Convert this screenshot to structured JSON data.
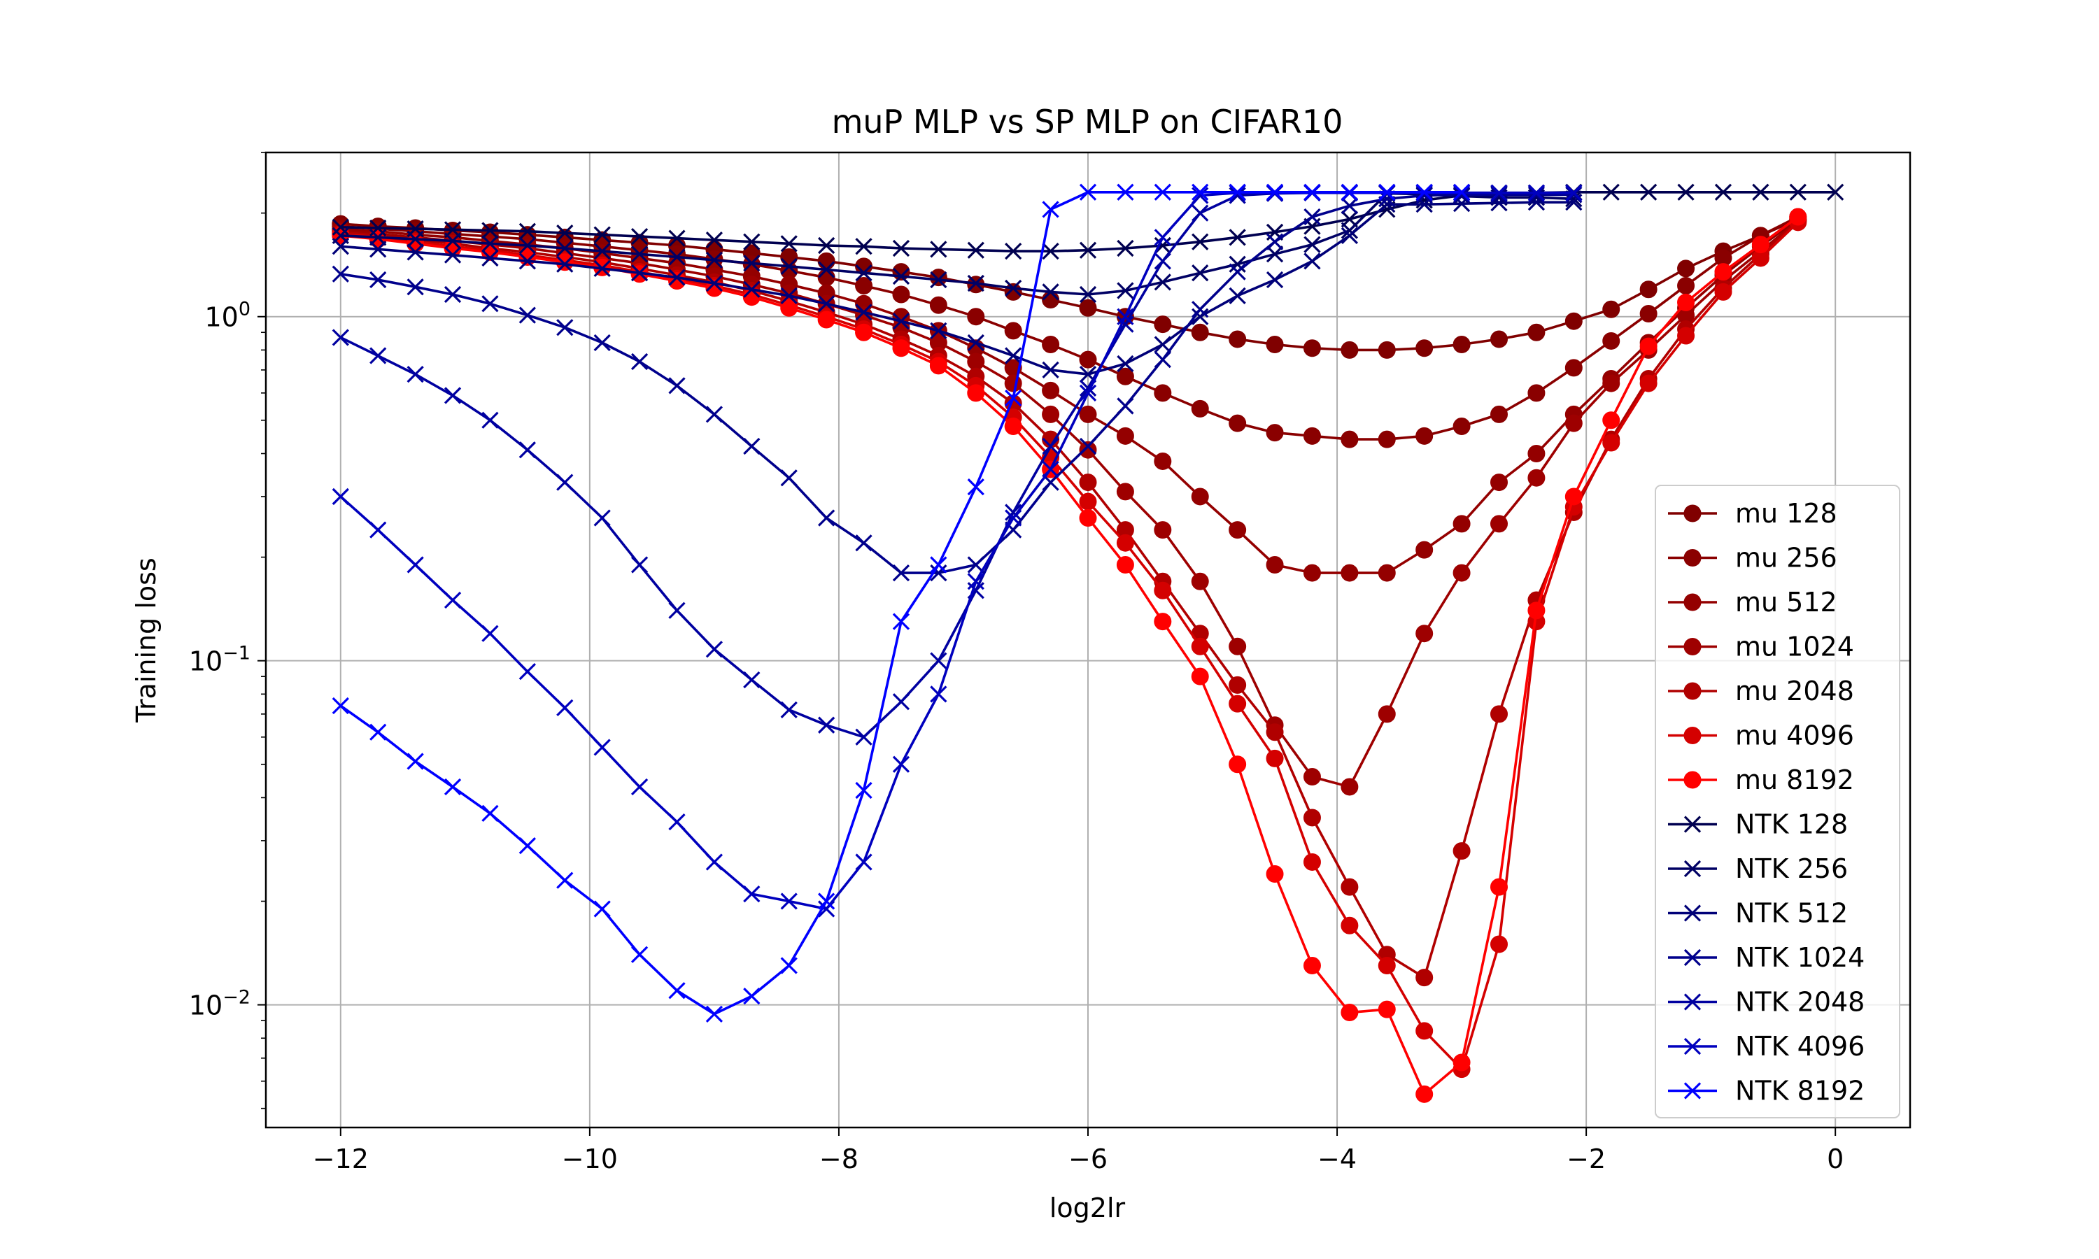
{
  "chart_data": {
    "type": "line",
    "title": "muP MLP vs SP MLP on CIFAR10",
    "xlabel": "log2lr",
    "ylabel": "Training loss",
    "xlim": [
      -12.6,
      0.6
    ],
    "ylim": [
      0.0044,
      3.0
    ],
    "yscale": "log",
    "grid": true,
    "legend_position": "lower-right",
    "x_ticks": [
      {
        "value": -12,
        "label": "−12"
      },
      {
        "value": -10,
        "label": "−10"
      },
      {
        "value": -8,
        "label": "−8"
      },
      {
        "value": -6,
        "label": "−6"
      },
      {
        "value": -4,
        "label": "−4"
      },
      {
        "value": -2,
        "label": "−2"
      },
      {
        "value": 0,
        "label": "0"
      }
    ],
    "y_ticks": [
      {
        "value": 0.01,
        "base": "10",
        "exp": "−2"
      },
      {
        "value": 0.1,
        "base": "10",
        "exp": "−1"
      },
      {
        "value": 1,
        "base": "10",
        "exp": "0"
      }
    ],
    "series": [
      {
        "name": "mu 128",
        "color": "#800000",
        "marker": "circle",
        "x": [
          -12,
          -11.7,
          -11.4,
          -11.1,
          -10.8,
          -10.5,
          -10.2,
          -9.9,
          -9.6,
          -9.3,
          -9.0,
          -8.7,
          -8.4,
          -8.1,
          -7.8,
          -7.5,
          -7.2,
          -6.9,
          -6.6,
          -6.3,
          -6.0,
          -5.7,
          -5.4,
          -5.1,
          -4.8,
          -4.5,
          -4.2,
          -3.9,
          -3.6,
          -3.3,
          -3.0,
          -2.7,
          -2.4,
          -2.1,
          -1.8,
          -1.5,
          -1.2,
          -0.9,
          -0.6,
          -0.3
        ],
        "y": [
          1.86,
          1.83,
          1.81,
          1.78,
          1.76,
          1.73,
          1.7,
          1.67,
          1.64,
          1.61,
          1.57,
          1.53,
          1.49,
          1.45,
          1.4,
          1.35,
          1.3,
          1.24,
          1.18,
          1.12,
          1.06,
          1.0,
          0.95,
          0.9,
          0.86,
          0.83,
          0.81,
          0.8,
          0.8,
          0.81,
          0.83,
          0.86,
          0.9,
          0.97,
          1.05,
          1.2,
          1.38,
          1.55,
          1.72,
          1.92
        ]
      },
      {
        "name": "mu 256",
        "color": "#8a0000",
        "marker": "circle",
        "x": [
          -12,
          -11.7,
          -11.4,
          -11.1,
          -10.8,
          -10.5,
          -10.2,
          -9.9,
          -9.6,
          -9.3,
          -9.0,
          -8.7,
          -8.4,
          -8.1,
          -7.8,
          -7.5,
          -7.2,
          -6.9,
          -6.6,
          -6.3,
          -6.0,
          -5.7,
          -5.4,
          -5.1,
          -4.8,
          -4.5,
          -4.2,
          -3.9,
          -3.6,
          -3.3,
          -3.0,
          -2.7,
          -2.4,
          -2.1,
          -1.8,
          -1.5,
          -1.2,
          -0.9,
          -0.6,
          -0.3
        ],
        "y": [
          1.83,
          1.8,
          1.77,
          1.74,
          1.71,
          1.68,
          1.64,
          1.6,
          1.56,
          1.52,
          1.47,
          1.42,
          1.36,
          1.3,
          1.23,
          1.16,
          1.08,
          1.0,
          0.91,
          0.83,
          0.75,
          0.67,
          0.6,
          0.54,
          0.49,
          0.46,
          0.45,
          0.44,
          0.44,
          0.45,
          0.48,
          0.52,
          0.6,
          0.71,
          0.85,
          1.02,
          1.23,
          1.48,
          1.72,
          1.95
        ]
      },
      {
        "name": "mu 512",
        "color": "#940000",
        "marker": "circle",
        "x": [
          -12,
          -11.7,
          -11.4,
          -11.1,
          -10.8,
          -10.5,
          -10.2,
          -9.9,
          -9.6,
          -9.3,
          -9.0,
          -8.7,
          -8.4,
          -8.1,
          -7.8,
          -7.5,
          -7.2,
          -6.9,
          -6.6,
          -6.3,
          -6.0,
          -5.7,
          -5.4,
          -5.1,
          -4.8,
          -4.5,
          -4.2,
          -3.9,
          -3.6,
          -3.3,
          -3.0,
          -2.7,
          -2.4,
          -2.1,
          -1.8,
          -1.5,
          -1.2,
          -0.9,
          -0.6,
          -0.3
        ],
        "y": [
          1.8,
          1.77,
          1.73,
          1.7,
          1.66,
          1.62,
          1.58,
          1.53,
          1.48,
          1.43,
          1.37,
          1.31,
          1.24,
          1.17,
          1.09,
          1.0,
          0.91,
          0.81,
          0.71,
          0.61,
          0.52,
          0.45,
          0.38,
          0.3,
          0.24,
          0.19,
          0.18,
          0.18,
          0.18,
          0.21,
          0.25,
          0.33,
          0.4,
          0.52,
          0.66,
          0.84,
          1.06,
          1.32,
          1.6,
          1.92
        ]
      },
      {
        "name": "mu 1024",
        "color": "#9e0000",
        "marker": "circle",
        "x": [
          -12,
          -11.7,
          -11.4,
          -11.1,
          -10.8,
          -10.5,
          -10.2,
          -9.9,
          -9.6,
          -9.3,
          -9.0,
          -8.7,
          -8.4,
          -8.1,
          -7.8,
          -7.5,
          -7.2,
          -6.9,
          -6.6,
          -6.3,
          -6.0,
          -5.7,
          -5.4,
          -5.1,
          -4.8,
          -4.5,
          -4.2,
          -3.9,
          -3.6,
          -3.3,
          -3.0,
          -2.7,
          -2.4,
          -2.1,
          -1.8,
          -1.5,
          -1.2,
          -0.9,
          -0.6,
          -0.3
        ],
        "y": [
          1.78,
          1.74,
          1.7,
          1.66,
          1.62,
          1.58,
          1.53,
          1.48,
          1.43,
          1.37,
          1.31,
          1.24,
          1.17,
          1.09,
          1.01,
          0.93,
          0.84,
          0.74,
          0.64,
          0.52,
          0.41,
          0.31,
          0.24,
          0.17,
          0.11,
          0.065,
          0.046,
          0.043,
          0.07,
          0.12,
          0.18,
          0.25,
          0.34,
          0.49,
          0.64,
          0.8,
          1.01,
          1.27,
          1.55,
          1.9
        ]
      },
      {
        "name": "mu 2048",
        "color": "#b00000",
        "marker": "circle",
        "x": [
          -12,
          -11.7,
          -11.4,
          -11.1,
          -10.8,
          -10.5,
          -10.2,
          -9.9,
          -9.6,
          -9.3,
          -9.0,
          -8.7,
          -8.4,
          -8.1,
          -7.8,
          -7.5,
          -7.2,
          -6.9,
          -6.6,
          -6.3,
          -6.0,
          -5.7,
          -5.4,
          -5.1,
          -4.8,
          -4.5,
          -4.2,
          -3.9,
          -3.6,
          -3.3,
          -3.0,
          -2.7,
          -2.4,
          -2.1,
          -1.8,
          -1.5,
          -1.2,
          -0.9,
          -0.6,
          -0.3
        ],
        "y": [
          1.76,
          1.72,
          1.67,
          1.63,
          1.58,
          1.54,
          1.49,
          1.44,
          1.38,
          1.32,
          1.26,
          1.19,
          1.11,
          1.03,
          0.95,
          0.86,
          0.77,
          0.67,
          0.56,
          0.44,
          0.33,
          0.24,
          0.17,
          0.12,
          0.085,
          0.062,
          0.035,
          0.022,
          0.014,
          0.012,
          0.028,
          0.07,
          0.15,
          0.27,
          0.44,
          0.66,
          0.92,
          1.21,
          1.52,
          1.9
        ]
      },
      {
        "name": "mu 4096",
        "color": "#d40000",
        "marker": "circle",
        "x": [
          -12,
          -11.7,
          -11.4,
          -11.1,
          -10.8,
          -10.5,
          -10.2,
          -9.9,
          -9.6,
          -9.3,
          -9.0,
          -8.7,
          -8.4,
          -8.1,
          -7.8,
          -7.5,
          -7.2,
          -6.9,
          -6.6,
          -6.3,
          -6.0,
          -5.7,
          -5.4,
          -5.1,
          -4.8,
          -4.5,
          -4.2,
          -3.9,
          -3.6,
          -3.3,
          -3.0,
          -2.7,
          -2.4,
          -2.1,
          -1.8,
          -1.5,
          -1.2,
          -0.9,
          -0.6,
          -0.3
        ],
        "y": [
          1.74,
          1.7,
          1.65,
          1.6,
          1.56,
          1.51,
          1.46,
          1.41,
          1.35,
          1.29,
          1.23,
          1.16,
          1.08,
          1.0,
          0.92,
          0.83,
          0.74,
          0.63,
          0.51,
          0.39,
          0.29,
          0.22,
          0.16,
          0.11,
          0.075,
          0.052,
          0.026,
          0.017,
          0.013,
          0.0084,
          0.0065,
          0.015,
          0.13,
          0.28,
          0.43,
          0.64,
          0.88,
          1.18,
          1.48,
          1.88
        ]
      },
      {
        "name": "mu 8192",
        "color": "#ff0000",
        "marker": "circle",
        "x": [
          -12,
          -11.7,
          -11.4,
          -11.1,
          -10.8,
          -10.5,
          -10.2,
          -9.9,
          -9.6,
          -9.3,
          -9.0,
          -8.7,
          -8.4,
          -8.1,
          -7.8,
          -7.5,
          -7.2,
          -6.9,
          -6.6,
          -6.3,
          -6.0,
          -5.7,
          -5.4,
          -5.1,
          -4.8,
          -4.5,
          -4.2,
          -3.9,
          -3.6,
          -3.3,
          -3.0,
          -2.7,
          -2.4,
          -2.1,
          -1.8,
          -1.5,
          -1.2,
          -0.9,
          -0.6,
          -0.3
        ],
        "y": [
          1.72,
          1.68,
          1.63,
          1.58,
          1.54,
          1.49,
          1.44,
          1.39,
          1.33,
          1.27,
          1.21,
          1.14,
          1.06,
          0.98,
          0.9,
          0.81,
          0.72,
          0.6,
          0.48,
          0.36,
          0.26,
          0.19,
          0.13,
          0.09,
          0.05,
          0.024,
          0.013,
          0.0095,
          0.0097,
          0.0055,
          0.0068,
          0.022,
          0.14,
          0.3,
          0.5,
          0.82,
          1.1,
          1.35,
          1.62,
          1.95
        ]
      },
      {
        "name": "NTK 128",
        "color": "#000050",
        "marker": "x",
        "x": [
          -12,
          -11.7,
          -11.4,
          -11.1,
          -10.8,
          -10.5,
          -10.2,
          -9.9,
          -9.6,
          -9.3,
          -9.0,
          -8.7,
          -8.4,
          -8.1,
          -7.8,
          -7.5,
          -7.2,
          -6.9,
          -6.6,
          -6.3,
          -6.0,
          -5.7,
          -5.4,
          -5.1,
          -4.8,
          -4.5,
          -4.2,
          -3.9,
          -3.6,
          -3.3,
          -3.0,
          -2.7,
          -2.4,
          -2.1,
          -1.8,
          -1.5,
          -1.2,
          -0.9,
          -0.6,
          -0.3,
          0.0
        ],
        "y": [
          1.82,
          1.81,
          1.8,
          1.79,
          1.78,
          1.77,
          1.75,
          1.73,
          1.71,
          1.69,
          1.67,
          1.65,
          1.63,
          1.61,
          1.6,
          1.58,
          1.57,
          1.56,
          1.55,
          1.55,
          1.56,
          1.58,
          1.61,
          1.65,
          1.7,
          1.76,
          1.83,
          1.92,
          2.05,
          2.18,
          2.25,
          2.28,
          2.29,
          2.3,
          2.3,
          2.3,
          2.3,
          2.3,
          2.3,
          2.3,
          2.3
        ]
      },
      {
        "name": "NTK 256",
        "color": "#000064",
        "marker": "x",
        "x": [
          -12,
          -11.7,
          -11.4,
          -11.1,
          -10.8,
          -10.5,
          -10.2,
          -9.9,
          -9.6,
          -9.3,
          -9.0,
          -8.7,
          -8.4,
          -8.1,
          -7.8,
          -7.5,
          -7.2,
          -6.9,
          -6.6,
          -6.3,
          -6.0,
          -5.7,
          -5.4,
          -5.1,
          -4.8,
          -4.5,
          -4.2,
          -3.9,
          -3.6,
          -3.3,
          -3.0,
          -2.7,
          -2.4,
          -2.1
        ],
        "y": [
          1.72,
          1.7,
          1.68,
          1.66,
          1.63,
          1.61,
          1.58,
          1.55,
          1.52,
          1.49,
          1.46,
          1.43,
          1.4,
          1.37,
          1.34,
          1.31,
          1.28,
          1.25,
          1.21,
          1.18,
          1.16,
          1.19,
          1.26,
          1.34,
          1.42,
          1.52,
          1.62,
          1.78,
          2.28,
          2.27,
          2.24,
          2.22,
          2.22,
          2.2
        ]
      },
      {
        "name": "NTK 512",
        "color": "#000078",
        "marker": "x",
        "x": [
          -12,
          -11.7,
          -11.4,
          -11.1,
          -10.8,
          -10.5,
          -10.2,
          -9.9,
          -9.6,
          -9.3,
          -9.0,
          -8.7,
          -8.4,
          -8.1,
          -7.8,
          -7.5,
          -7.2,
          -6.9,
          -6.6,
          -6.3,
          -6.0,
          -5.7,
          -5.4,
          -5.1,
          -4.8,
          -4.5,
          -4.2,
          -3.9,
          -3.6,
          -3.3,
          -3.0,
          -2.7,
          -2.4,
          -2.1
        ],
        "y": [
          1.6,
          1.57,
          1.54,
          1.51,
          1.48,
          1.45,
          1.42,
          1.38,
          1.34,
          1.3,
          1.25,
          1.2,
          1.15,
          1.09,
          1.03,
          0.97,
          0.91,
          0.84,
          0.77,
          0.7,
          0.68,
          0.73,
          0.83,
          1.0,
          1.15,
          1.28,
          1.45,
          1.72,
          2.12,
          2.12,
          2.13,
          2.14,
          2.15,
          2.15
        ]
      },
      {
        "name": "NTK 1024",
        "color": "#00008c",
        "marker": "x",
        "x": [
          -12,
          -11.7,
          -11.4,
          -11.1,
          -10.8,
          -10.5,
          -10.2,
          -9.9,
          -9.6,
          -9.3,
          -9.0,
          -8.7,
          -8.4,
          -8.1,
          -7.8,
          -7.5,
          -7.2,
          -6.9,
          -6.6,
          -6.3,
          -6.0,
          -5.7,
          -5.4,
          -5.1,
          -4.8,
          -4.5,
          -4.2,
          -3.9,
          -3.6,
          -3.3,
          -3.0,
          -2.7,
          -2.4,
          -2.1
        ],
        "y": [
          1.33,
          1.28,
          1.22,
          1.16,
          1.09,
          1.01,
          0.93,
          0.84,
          0.74,
          0.63,
          0.52,
          0.42,
          0.34,
          0.26,
          0.22,
          0.18,
          0.18,
          0.19,
          0.24,
          0.33,
          0.42,
          0.55,
          0.75,
          1.05,
          1.35,
          1.65,
          1.95,
          2.1,
          2.2,
          2.25,
          2.26,
          2.26,
          2.26,
          2.26
        ]
      },
      {
        "name": "NTK 2048",
        "color": "#0000a0",
        "marker": "x",
        "x": [
          -12,
          -11.7,
          -11.4,
          -11.1,
          -10.8,
          -10.5,
          -10.2,
          -9.9,
          -9.6,
          -9.3,
          -9.0,
          -8.7,
          -8.4,
          -8.1,
          -7.8,
          -7.5,
          -7.2,
          -6.9,
          -6.6,
          -6.3,
          -6.0,
          -5.7,
          -5.4,
          -5.1,
          -4.8,
          -4.5,
          -4.2,
          -3.9,
          -3.6,
          -3.3,
          -3.0,
          -2.7,
          -2.4,
          -2.1
        ],
        "y": [
          0.87,
          0.77,
          0.68,
          0.59,
          0.5,
          0.41,
          0.33,
          0.26,
          0.19,
          0.14,
          0.108,
          0.088,
          0.072,
          0.065,
          0.06,
          0.076,
          0.1,
          0.16,
          0.27,
          0.42,
          0.62,
          0.95,
          1.45,
          2.0,
          2.25,
          2.28,
          2.29,
          2.29,
          2.29,
          2.29,
          2.29,
          2.29,
          2.29,
          2.29
        ]
      },
      {
        "name": "NTK 4096",
        "color": "#0000be",
        "marker": "x",
        "x": [
          -12,
          -11.7,
          -11.4,
          -11.1,
          -10.8,
          -10.5,
          -10.2,
          -9.9,
          -9.6,
          -9.3,
          -9.0,
          -8.7,
          -8.4,
          -8.1,
          -7.8,
          -7.5,
          -7.2,
          -6.9,
          -6.6,
          -6.3,
          -6.0,
          -5.7,
          -5.4,
          -5.1,
          -4.8,
          -4.5,
          -4.2,
          -3.9,
          -3.6,
          -3.3,
          -3.0,
          -2.7,
          -2.4,
          -2.1
        ],
        "y": [
          0.3,
          0.24,
          0.19,
          0.15,
          0.12,
          0.093,
          0.073,
          0.056,
          0.043,
          0.034,
          0.026,
          0.021,
          0.02,
          0.019,
          0.026,
          0.05,
          0.08,
          0.17,
          0.26,
          0.36,
          0.6,
          1.0,
          1.7,
          2.25,
          2.29,
          2.29,
          2.29,
          2.29,
          2.29,
          2.29,
          2.29,
          2.29,
          2.29,
          2.29
        ]
      },
      {
        "name": "NTK 8192",
        "color": "#0000ff",
        "marker": "x",
        "x": [
          -12,
          -11.7,
          -11.4,
          -11.1,
          -10.8,
          -10.5,
          -10.2,
          -9.9,
          -9.6,
          -9.3,
          -9.0,
          -8.7,
          -8.4,
          -8.1,
          -7.8,
          -7.5,
          -7.2,
          -6.9,
          -6.6,
          -6.3,
          -6.0,
          -5.7,
          -5.4,
          -5.1,
          -4.8,
          -4.5,
          -4.2,
          -3.9,
          -3.6,
          -3.3,
          -3.0
        ],
        "y": [
          0.074,
          0.062,
          0.051,
          0.043,
          0.036,
          0.029,
          0.023,
          0.019,
          0.014,
          0.011,
          0.0094,
          0.0106,
          0.013,
          0.02,
          0.042,
          0.13,
          0.19,
          0.32,
          0.58,
          2.05,
          2.3,
          2.3,
          2.3,
          2.3,
          2.3,
          2.3,
          2.3,
          2.3,
          2.3,
          2.3,
          2.3
        ]
      }
    ]
  }
}
